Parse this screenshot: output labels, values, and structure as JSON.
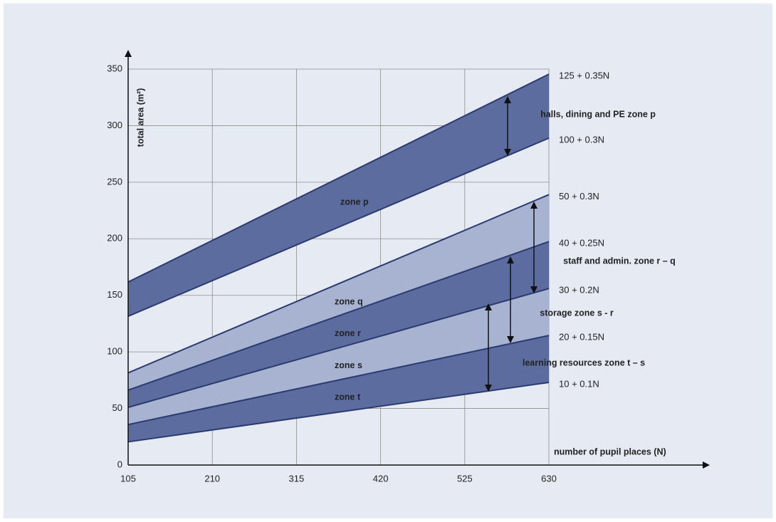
{
  "chart_data": {
    "type": "line",
    "x_label": "number of pupil places (N)",
    "y_label": "total area (m²)",
    "x": [
      105,
      630
    ],
    "xlim": [
      105,
      630
    ],
    "ylim": [
      0,
      350
    ],
    "xticks": [
      105,
      210,
      315,
      420,
      525,
      630
    ],
    "yticks": [
      0,
      50,
      100,
      150,
      200,
      250,
      300,
      350
    ],
    "grid": true,
    "line_color": "#2b3a70",
    "series": [
      {
        "name": "125 + 0.35N",
        "values": [
          161.75,
          345.5
        ]
      },
      {
        "name": "100 + 0.3N",
        "values": [
          131.5,
          289
        ]
      },
      {
        "name": "50 + 0.3N",
        "values": [
          81.5,
          239
        ]
      },
      {
        "name": "40 + 0.25N",
        "values": [
          66.25,
          197.5
        ]
      },
      {
        "name": "30 + 0.2N",
        "values": [
          51,
          156
        ]
      },
      {
        "name": "20 + 0.15N",
        "values": [
          35.75,
          114.5
        ]
      },
      {
        "name": "10 + 0.1N",
        "values": [
          20.5,
          73
        ]
      }
    ],
    "zones": [
      {
        "name": "zone p",
        "color": "#5c6c9e"
      },
      {
        "name": "zone q",
        "color": "#a8b3d1"
      },
      {
        "name": "zone r",
        "color": "#5c6c9e"
      },
      {
        "name": "zone s",
        "color": "#a8b3d1"
      },
      {
        "name": "zone t",
        "color": "#5c6c9e"
      }
    ],
    "annotations": [
      "halls, dining and PE zone p",
      "staff and admin. zone r – q",
      "storage zone s - r",
      "learning resources zone t – s"
    ]
  }
}
